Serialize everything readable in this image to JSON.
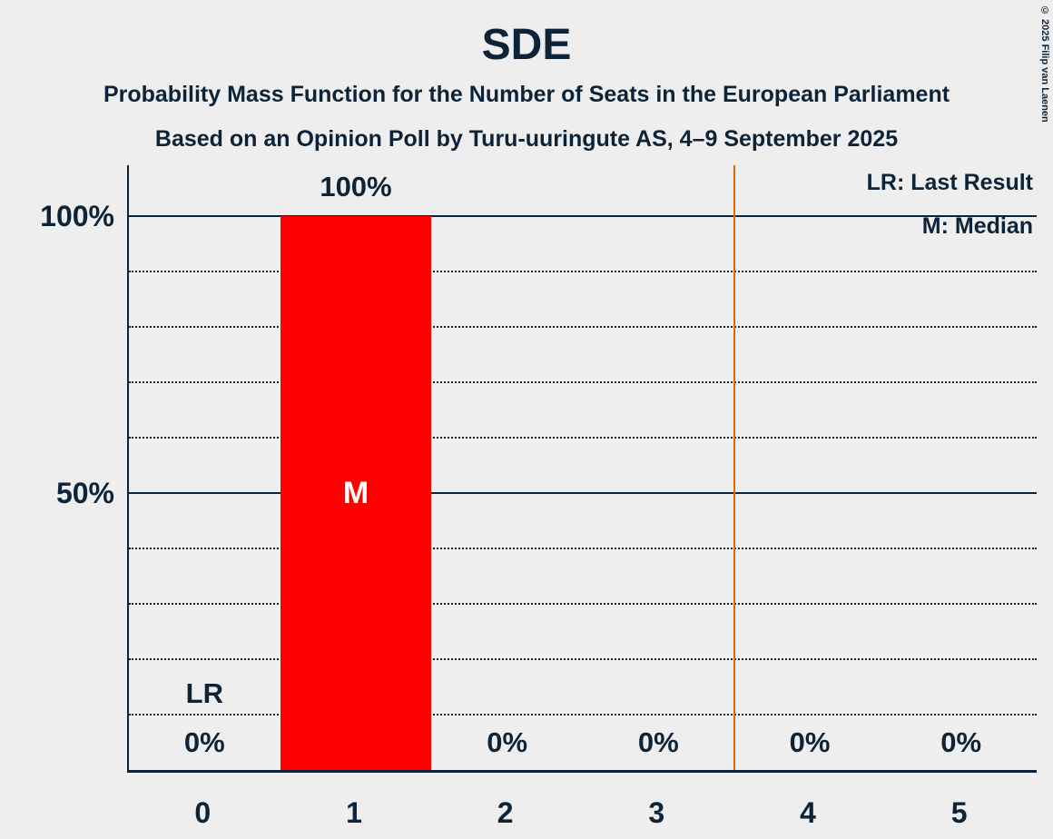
{
  "chart_data": {
    "type": "bar",
    "title": "SDE",
    "subtitle1": "Probability Mass Function for the Number of Seats in the European Parliament",
    "subtitle2": "Based on an Opinion Poll by Turu-uuringute AS, 4–9 September 2025",
    "categories": [
      "0",
      "1",
      "2",
      "3",
      "4",
      "5"
    ],
    "values": [
      0,
      100,
      0,
      0,
      0,
      0
    ],
    "value_labels": [
      "0%",
      "100%",
      "0%",
      "0%",
      "0%",
      "0%"
    ],
    "xlabel": "",
    "ylabel": "",
    "ylim": [
      0,
      100
    ],
    "yticks": [
      {
        "value": 100,
        "label": "100%"
      },
      {
        "value": 50,
        "label": "50%"
      }
    ],
    "solid_gridlines": [
      100,
      50
    ],
    "dotted_gridlines": [
      90,
      80,
      70,
      60,
      40,
      30,
      20,
      10
    ],
    "median_category_index": 1,
    "median_label": "M",
    "last_result_category_index": 0,
    "last_result_label": "LR",
    "lr_line_position": 3.5,
    "legend": [
      {
        "label": "LR: Last Result"
      },
      {
        "label": "M: Median"
      }
    ],
    "copyright": "© 2025 Filip van Laenen",
    "colors": {
      "bar": "#ff0000",
      "bar_label_inside": "#ffffff",
      "lr_line": "#dd6b00",
      "text": "#0d2438",
      "background": "#eeeeee"
    }
  }
}
